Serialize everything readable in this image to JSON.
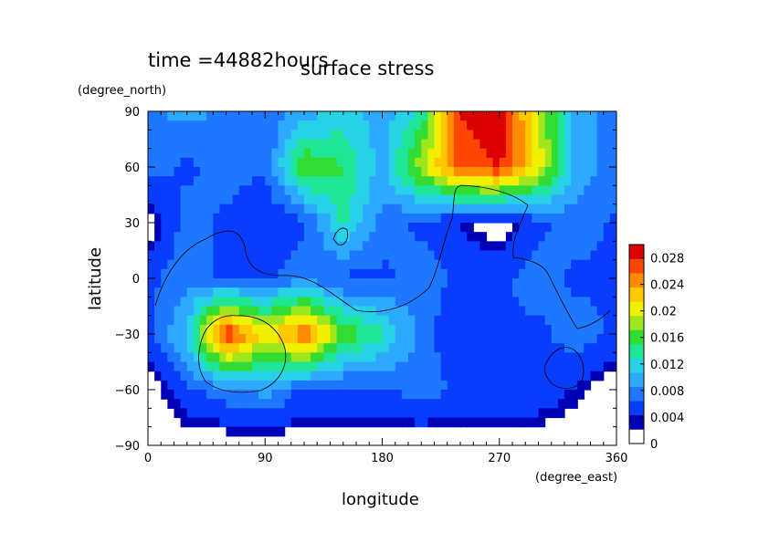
{
  "chart_data": {
    "type": "heatmap",
    "title": "surface stress",
    "time_label": "time =44882hours",
    "xlabel": "longitude",
    "ylabel": "latitude",
    "x_unit": "(degree_east)",
    "y_unit": "(degree_north)",
    "xlim": [
      0,
      360
    ],
    "ylim": [
      -90,
      90
    ],
    "x_ticks": [
      "0",
      "90",
      "180",
      "270",
      "360"
    ],
    "y_ticks": [
      "90",
      "60",
      "30",
      "0",
      "−30",
      "−60",
      "−90"
    ],
    "colorbar": {
      "ticks": [
        "0.028",
        "0.024",
        "0.02",
        "0.016",
        "0.012",
        "0.008",
        "0.004",
        "0"
      ],
      "range": [
        0,
        0.03
      ],
      "colors": [
        "#ffffff",
        "#0000b4",
        "#0a3cff",
        "#1e78ff",
        "#2daaff",
        "#28d2e6",
        "#1ee696",
        "#32dc32",
        "#a0e61e",
        "#f0f000",
        "#ffc800",
        "#ff8c00",
        "#ff4600",
        "#dc0000"
      ]
    },
    "lon_step": 30,
    "lat_step": 30,
    "grid_lons": [
      0,
      30,
      60,
      90,
      120,
      150,
      180,
      210,
      240,
      270,
      300,
      330,
      360
    ],
    "grid_lats": [
      90,
      60,
      30,
      0,
      -30,
      -60,
      -90
    ],
    "grid_values": [
      [
        0.006,
        0.008,
        0.006,
        0.005,
        0.008,
        0.01,
        0.008,
        0.012,
        0.028,
        0.03,
        0.018,
        0.008,
        0.006
      ],
      [
        0.006,
        0.004,
        0.006,
        0.005,
        0.016,
        0.014,
        0.008,
        0.018,
        0.026,
        0.028,
        0.02,
        0.008,
        0.006
      ],
      [
        0.0,
        0.006,
        0.004,
        0.002,
        0.004,
        0.012,
        0.006,
        0.004,
        0.002,
        0.0,
        0.004,
        0.006,
        0.004
      ],
      [
        0.004,
        0.006,
        0.004,
        0.004,
        0.006,
        0.004,
        0.004,
        0.006,
        0.004,
        0.004,
        0.006,
        0.004,
        0.004
      ],
      [
        0.004,
        0.01,
        0.028,
        0.02,
        0.026,
        0.016,
        0.012,
        0.006,
        0.002,
        0.004,
        0.004,
        0.006,
        0.004
      ],
      [
        0.0,
        0.004,
        0.006,
        0.008,
        0.004,
        0.004,
        0.004,
        0.006,
        0.004,
        0.004,
        0.004,
        0.002,
        0.0
      ],
      [
        0.0,
        0.0,
        0.0,
        0.0,
        0.0,
        0.0,
        0.0,
        0.0,
        0.0,
        0.0,
        0.0,
        0.0,
        0.0
      ]
    ]
  }
}
